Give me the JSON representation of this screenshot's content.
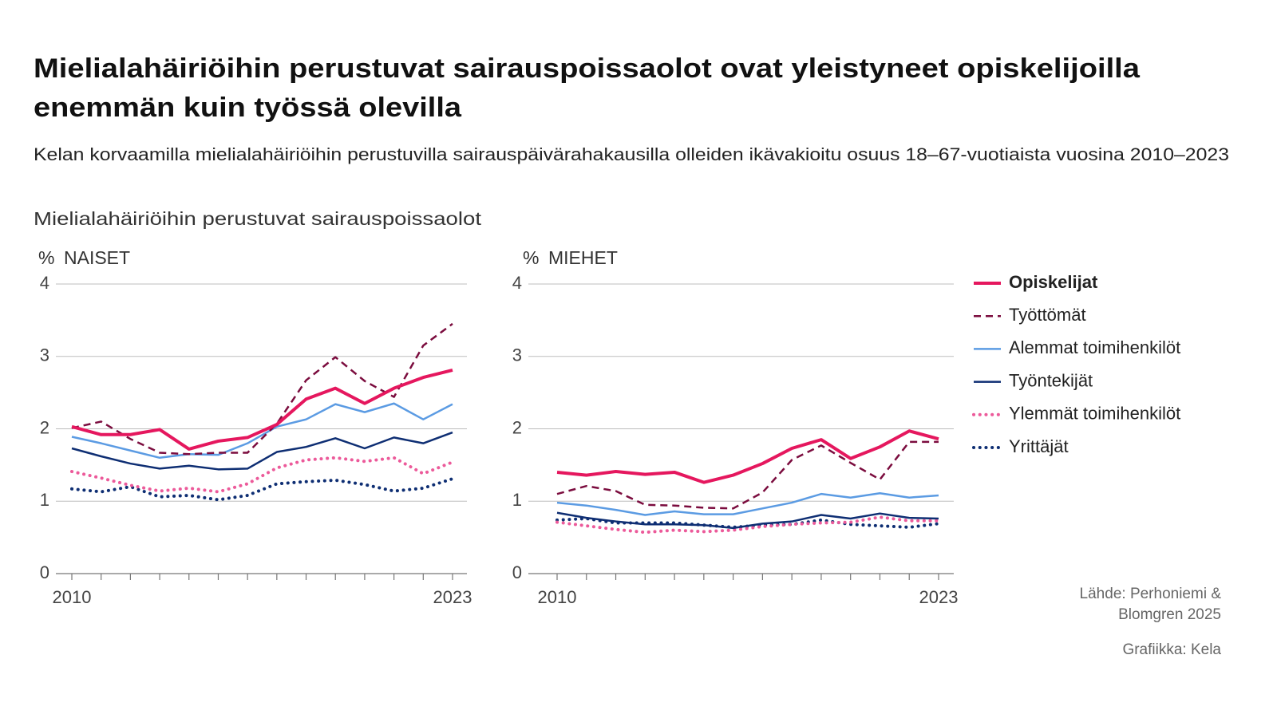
{
  "title": [
    "Mielialahäiriöihin perustuvat sairauspoissaolot ovat yleistyneet opiskelijoilla",
    "enemmän kuin työssä olevilla"
  ],
  "subtitle": "Kelan korvaamilla mielialahäiriöihin perustuvilla sairauspäivärahakausilla olleiden ikävakioitu osuus 18–67-vuotiaista vuosina 2010–2023",
  "section_label": "Mielialahäiriöihin perustuvat sairauspoissaolot",
  "source": [
    "Lähde: Perhoniemi &",
    "Blomgren 2025"
  ],
  "credit": "Grafiikka: Kela",
  "chart_data": [
    {
      "type": "line",
      "title": "NAISET",
      "y_unit": "%",
      "x": [
        2010,
        2011,
        2012,
        2013,
        2014,
        2015,
        2016,
        2017,
        2018,
        2019,
        2020,
        2021,
        2022,
        2023
      ],
      "xlim": [
        2010,
        2023
      ],
      "xticks": [
        2010,
        2023
      ],
      "ylim": [
        0,
        4
      ],
      "yticks": [
        0,
        1,
        2,
        3,
        4
      ],
      "grid": true,
      "legend": "right",
      "series": [
        {
          "name": "Opiskelijat",
          "color": "#e5175e",
          "dash": "solid",
          "width": 4,
          "bold": true,
          "values": [
            2.03,
            1.92,
            1.92,
            1.99,
            1.72,
            1.83,
            1.88,
            2.06,
            2.41,
            2.56,
            2.35,
            2.56,
            2.71,
            2.81
          ]
        },
        {
          "name": "Työttömät",
          "color": "#7b0c3e",
          "dash": "dashed",
          "width": 2.5,
          "bold": false,
          "values": [
            2.01,
            2.1,
            1.86,
            1.67,
            1.65,
            1.67,
            1.67,
            2.07,
            2.67,
            2.99,
            2.66,
            2.44,
            3.15,
            3.45
          ]
        },
        {
          "name": "Alemmat toimihenkilöt",
          "color": "#5b9be3",
          "dash": "solid",
          "width": 2.5,
          "bold": false,
          "values": [
            1.89,
            1.8,
            1.7,
            1.6,
            1.65,
            1.64,
            1.8,
            2.03,
            2.13,
            2.34,
            2.23,
            2.35,
            2.13,
            2.34
          ]
        },
        {
          "name": "Työntekijät",
          "color": "#0e2e73",
          "dash": "solid",
          "width": 2.5,
          "bold": false,
          "values": [
            1.73,
            1.62,
            1.52,
            1.45,
            1.49,
            1.44,
            1.45,
            1.68,
            1.75,
            1.87,
            1.73,
            1.88,
            1.8,
            1.95
          ]
        },
        {
          "name": "Ylemmät toimihenkilöt",
          "color": "#ec5a9a",
          "dash": "dotted",
          "width": 4,
          "bold": false,
          "values": [
            1.41,
            1.32,
            1.22,
            1.14,
            1.18,
            1.13,
            1.24,
            1.46,
            1.57,
            1.6,
            1.55,
            1.6,
            1.38,
            1.54
          ]
        },
        {
          "name": "Yrittäjät",
          "color": "#0e2e73",
          "dash": "dotted",
          "width": 4,
          "bold": false,
          "values": [
            1.17,
            1.13,
            1.2,
            1.06,
            1.08,
            1.02,
            1.08,
            1.24,
            1.27,
            1.29,
            1.23,
            1.14,
            1.18,
            1.31
          ]
        }
      ]
    },
    {
      "type": "line",
      "title": "MIEHET",
      "y_unit": "%",
      "x": [
        2010,
        2011,
        2012,
        2013,
        2014,
        2015,
        2016,
        2017,
        2018,
        2019,
        2020,
        2021,
        2022,
        2023
      ],
      "xlim": [
        2010,
        2023
      ],
      "xticks": [
        2010,
        2023
      ],
      "ylim": [
        0,
        4
      ],
      "yticks": [
        0,
        1,
        2,
        3,
        4
      ],
      "grid": true,
      "series": [
        {
          "color": "#e5175e",
          "dash": "solid",
          "width": 4,
          "values": [
            1.4,
            1.36,
            1.41,
            1.37,
            1.4,
            1.26,
            1.36,
            1.52,
            1.73,
            1.85,
            1.59,
            1.75,
            1.97,
            1.86
          ]
        },
        {
          "color": "#7b0c3e",
          "dash": "dashed",
          "width": 2.5,
          "values": [
            1.1,
            1.21,
            1.14,
            0.95,
            0.94,
            0.91,
            0.9,
            1.12,
            1.57,
            1.77,
            1.53,
            1.3,
            1.82,
            1.82
          ]
        },
        {
          "color": "#5b9be3",
          "dash": "solid",
          "width": 2.5,
          "values": [
            0.98,
            0.94,
            0.88,
            0.81,
            0.86,
            0.82,
            0.82,
            0.9,
            0.98,
            1.1,
            1.05,
            1.11,
            1.05,
            1.08
          ]
        },
        {
          "color": "#0e2e73",
          "dash": "solid",
          "width": 2.5,
          "values": [
            0.84,
            0.77,
            0.72,
            0.68,
            0.68,
            0.67,
            0.63,
            0.69,
            0.72,
            0.81,
            0.76,
            0.83,
            0.77,
            0.76
          ]
        },
        {
          "color": "#ec5a9a",
          "dash": "dotted",
          "width": 4,
          "values": [
            0.71,
            0.66,
            0.61,
            0.57,
            0.6,
            0.58,
            0.6,
            0.65,
            0.68,
            0.7,
            0.71,
            0.78,
            0.73,
            0.73
          ]
        },
        {
          "color": "#0e2e73",
          "dash": "dotted",
          "width": 4,
          "values": [
            0.74,
            0.76,
            0.7,
            0.7,
            0.7,
            0.67,
            0.64,
            0.67,
            0.68,
            0.74,
            0.68,
            0.66,
            0.64,
            0.69
          ]
        }
      ]
    }
  ]
}
